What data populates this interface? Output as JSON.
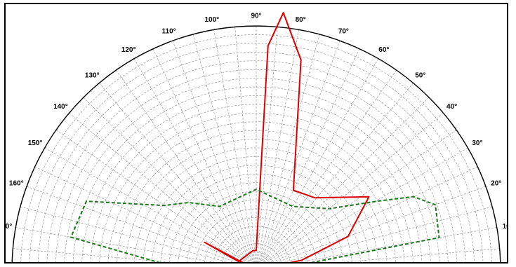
{
  "chart_data": {
    "type": "polar",
    "title": "",
    "angle_ticks": [
      "0°",
      "10°",
      "20°",
      "30°",
      "40°",
      "50°",
      "60°",
      "70°",
      "80°",
      "90°",
      "100°",
      "110°",
      "120°",
      "130°",
      "140°",
      "150°",
      "160°",
      "170°",
      "180°"
    ],
    "angle_tick_values": [
      0,
      10,
      20,
      30,
      40,
      50,
      60,
      70,
      80,
      90,
      100,
      110,
      120,
      130,
      140,
      150,
      160,
      170,
      180
    ],
    "radial_range": [
      0,
      1
    ],
    "radial_grid_count": 28,
    "angular_grid_step": 5,
    "grid": true,
    "series": [
      {
        "color": "#dd0000",
        "style": "solid",
        "points": [
          {
            "angle": 90,
            "r": 0.0
          },
          {
            "angle": 12,
            "r": 0.19
          },
          {
            "angle": 20,
            "r": 0.4
          },
          {
            "angle": 33,
            "r": 0.55
          },
          {
            "angle": 51,
            "r": 0.38
          },
          {
            "angle": 65,
            "r": 0.36
          },
          {
            "angle": 78,
            "r": 0.88
          },
          {
            "angle": 84,
            "r": 1.06
          },
          {
            "angle": 87,
            "r": 0.92
          },
          {
            "angle": 90,
            "r": 0.08
          },
          {
            "angle": 100,
            "r": 0.08
          },
          {
            "angle": 155,
            "r": 0.08
          },
          {
            "angle": 152,
            "r": 0.24
          }
        ]
      },
      {
        "color": "#1a7a1a",
        "style": "dashed",
        "points": [
          {
            "angle": 2,
            "r": 0.09
          },
          {
            "angle": 10,
            "r": 0.76
          },
          {
            "angle": 20,
            "r": 0.78
          },
          {
            "angle": 25,
            "r": 0.71
          },
          {
            "angle": 30,
            "r": 0.56
          },
          {
            "angle": 40,
            "r": 0.39
          },
          {
            "angle": 60,
            "r": 0.3
          },
          {
            "angle": 90,
            "r": 0.33
          },
          {
            "angle": 120,
            "r": 0.3
          },
          {
            "angle": 135,
            "r": 0.39
          },
          {
            "angle": 145,
            "r": 0.46
          },
          {
            "angle": 158,
            "r": 0.75
          },
          {
            "angle": 170,
            "r": 0.77
          },
          {
            "angle": 176,
            "r": 0.39
          },
          {
            "angle": 178,
            "r": 0.09
          }
        ]
      }
    ]
  }
}
